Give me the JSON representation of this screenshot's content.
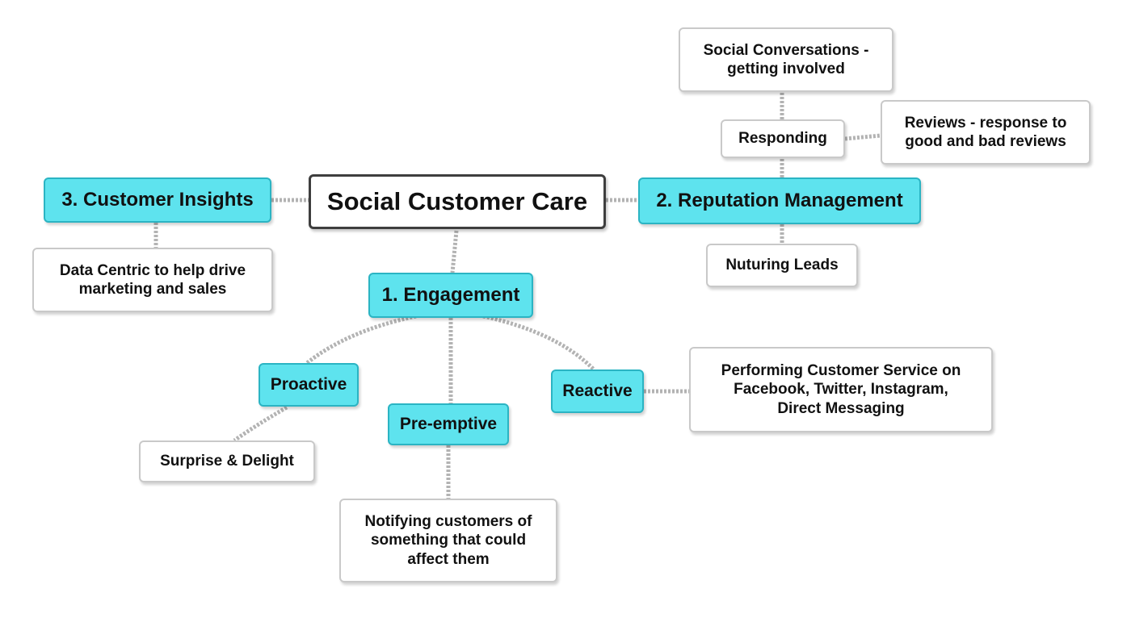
{
  "diagram": {
    "root": {
      "label": "Social Customer Care"
    },
    "engagement": {
      "label": "1. Engagement",
      "proactive": {
        "label": "Proactive",
        "child": "Surprise & Delight"
      },
      "preemptive": {
        "label": "Pre-emptive",
        "child": "Notifying customers of\nsomething that could\naffect them"
      },
      "reactive": {
        "label": "Reactive",
        "child": "Performing Customer Service on\nFacebook, Twitter, Instagram,\nDirect Messaging"
      }
    },
    "reputation": {
      "label": "2. Reputation Management",
      "responding": {
        "label": "Responding"
      },
      "social_conversations": {
        "label": "Social Conversations -\ngetting involved"
      },
      "reviews": {
        "label": "Reviews - response to\ngood and bad reviews"
      },
      "nurturing": {
        "label": "Nuturing Leads"
      }
    },
    "insights": {
      "label": "3. Customer Insights",
      "child": "Data Centric to help drive\nmarketing and sales"
    },
    "colors": {
      "branch_fill": "#5ee3ee",
      "branch_border": "#2bb4c3",
      "connector": "#b3b3b3",
      "root_border": "#3e3e3e"
    }
  }
}
